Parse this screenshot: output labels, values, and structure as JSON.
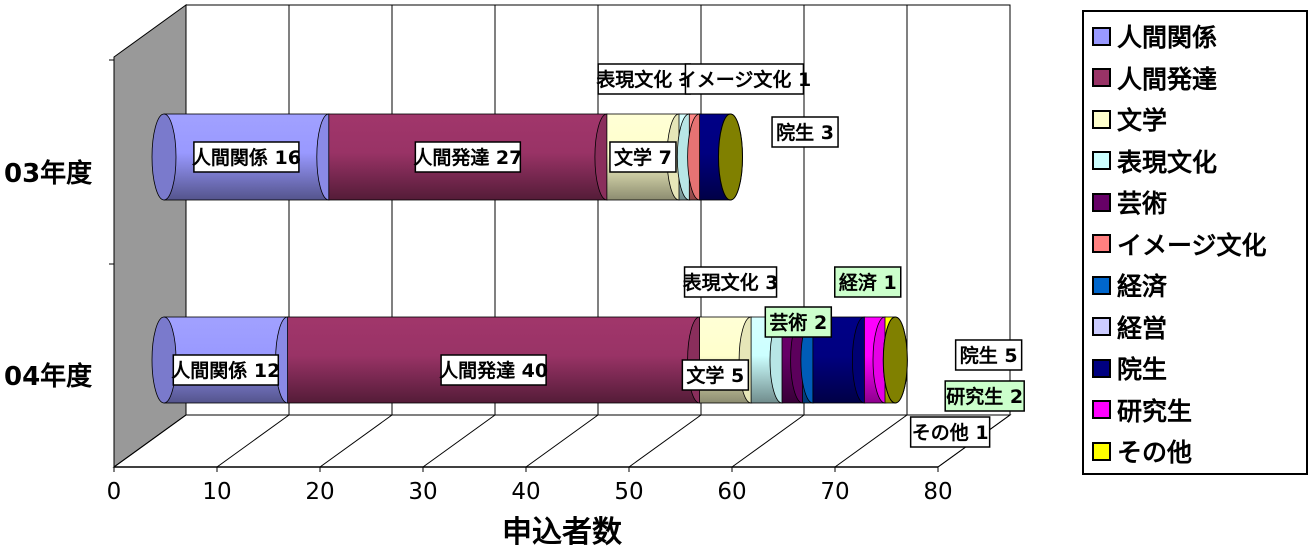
{
  "chart_data": {
    "type": "bar",
    "orientation": "horizontal",
    "stacked": true,
    "style": "3d-cylinder",
    "categories": [
      "03年度",
      "04年度"
    ],
    "xlabel": "申込者数",
    "xlim": [
      0,
      80
    ],
    "xticks": [
      "0",
      "10",
      "20",
      "30",
      "40",
      "50",
      "60",
      "70",
      "80"
    ],
    "grid": true,
    "legend_position": "right",
    "series": [
      {
        "name": "人間関係",
        "label": "人間関係",
        "color": "#9999ff",
        "values": [
          16,
          12
        ]
      },
      {
        "name": "人間発達",
        "label": "人間発達",
        "color": "#993366",
        "values": [
          27,
          40
        ]
      },
      {
        "name": "文学",
        "label": "文学",
        "color": "#ffffcc",
        "values": [
          7,
          5
        ]
      },
      {
        "name": "表現文化",
        "label": "表現文化",
        "color": "#ccffff",
        "values": [
          1,
          3
        ]
      },
      {
        "name": "芸術",
        "label": "芸術",
        "color": "#660066",
        "values": [
          0,
          2
        ]
      },
      {
        "name": "イメージ文化",
        "label": "イメージ文化",
        "color": "#ff8080",
        "values": [
          1,
          0
        ]
      },
      {
        "name": "経済",
        "label": "経済",
        "color": "#0066cc",
        "values": [
          0,
          1
        ]
      },
      {
        "name": "経営",
        "label": "経営",
        "color": "#ccccff",
        "values": [
          0,
          0
        ]
      },
      {
        "name": "院生",
        "label": "院生",
        "color": "#000080",
        "values": [
          3,
          5
        ]
      },
      {
        "name": "研究生",
        "label": "研究生",
        "color": "#ff00ff",
        "values": [
          0,
          2
        ]
      },
      {
        "name": "その他",
        "label": "その他",
        "color": "#ffff00",
        "values": [
          0,
          1
        ]
      }
    ],
    "data_labels": [
      {
        "row": 0,
        "series": "人間関係",
        "text": "人間関係 16"
      },
      {
        "row": 0,
        "series": "人間発達",
        "text": "人間発達 27"
      },
      {
        "row": 0,
        "series": "文学",
        "text": "文学 7"
      },
      {
        "row": 0,
        "series": "表現文化",
        "text": "表現文化 1"
      },
      {
        "row": 0,
        "series": "イメージ文化",
        "text": "イメージ文化 1"
      },
      {
        "row": 0,
        "series": "院生",
        "text": "院生 3"
      },
      {
        "row": 1,
        "series": "人間関係",
        "text": "人間関係 12"
      },
      {
        "row": 1,
        "series": "人間発達",
        "text": "人間発達 40"
      },
      {
        "row": 1,
        "series": "文学",
        "text": "文学 5"
      },
      {
        "row": 1,
        "series": "表現文化",
        "text": "表現文化 3"
      },
      {
        "row": 1,
        "series": "芸術",
        "text": "芸術 2"
      },
      {
        "row": 1,
        "series": "経済",
        "text": "経済 1"
      },
      {
        "row": 1,
        "series": "院生",
        "text": "院生 5"
      },
      {
        "row": 1,
        "series": "研究生",
        "text": "研究生 2"
      },
      {
        "row": 1,
        "series": "その他",
        "text": "その他 1"
      }
    ],
    "end_cap_color": "#808000",
    "wall_color": "#999999",
    "callout_highlight_color": "#ccffcc"
  }
}
